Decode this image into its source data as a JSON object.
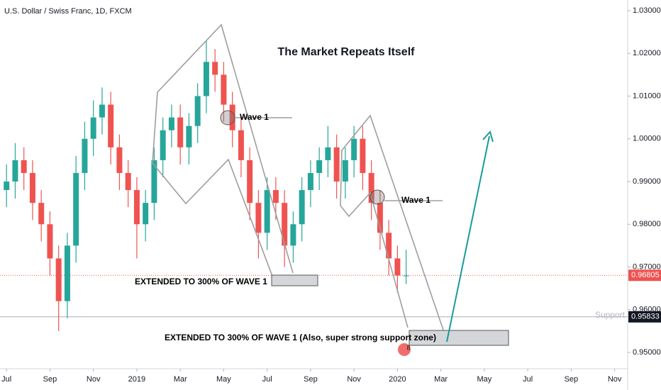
{
  "chart_data": {
    "type": "candlestick",
    "title": "U.S. Dollar / Swiss Franc, 1D, FXCM",
    "annotations": {
      "headline": "The Market Repeats Itself",
      "wave_left": "Wave 1",
      "wave_right": "Wave 1",
      "extended_left": "EXTENDED TO 300% OF WAVE 1",
      "extended_right": "EXTENDED TO 300% OF WAVE 1 (Also, super strong support zone)",
      "badge": "8"
    },
    "up_color": "#26a69a",
    "down_color": "#ef5350",
    "x": [
      0,
      0.4,
      0.8,
      1.2,
      1.6,
      2.0,
      2.4,
      2.8,
      3.2,
      3.6,
      4.0,
      4.4,
      4.8,
      5.2,
      5.6,
      6.0,
      6.4,
      6.8,
      7.2,
      7.6,
      8.0,
      8.4,
      8.8,
      9.2,
      9.6,
      10.0,
      10.4,
      10.8,
      11.2,
      11.6,
      12.0,
      12.4,
      12.8,
      13.2,
      13.6,
      14.0,
      14.4,
      14.8,
      15.2,
      15.6,
      16.0,
      16.4,
      16.8,
      17.2,
      17.6,
      18.0,
      18.4
    ],
    "open": [
      0.988,
      0.99,
      0.995,
      0.992,
      0.985,
      0.98,
      0.972,
      0.962,
      0.975,
      0.992,
      1.0,
      1.005,
      1.008,
      0.998,
      0.992,
      0.988,
      0.98,
      0.985,
      0.995,
      1.002,
      1.005,
      0.998,
      1.003,
      1.01,
      1.018,
      1.015,
      1.008,
      1.002,
      0.995,
      0.985,
      0.978,
      0.988,
      0.985,
      0.975,
      0.98,
      0.988,
      0.992,
      0.995,
      0.998,
      0.99,
      0.995,
      1.0,
      0.992,
      0.985,
      0.978,
      0.972,
      0.968
    ],
    "high": [
      0.994,
      0.999,
      0.998,
      0.995,
      0.988,
      0.983,
      0.975,
      0.978,
      0.996,
      1.004,
      1.009,
      1.012,
      1.011,
      1.001,
      0.995,
      0.991,
      0.988,
      0.998,
      1.005,
      1.008,
      1.008,
      1.006,
      1.013,
      1.023,
      1.021,
      1.018,
      1.011,
      1.005,
      0.998,
      0.988,
      0.991,
      0.991,
      0.988,
      0.983,
      0.991,
      0.995,
      0.998,
      1.003,
      1.001,
      0.998,
      1.003,
      1.003,
      0.995,
      0.988,
      0.981,
      0.975,
      0.974
    ],
    "low": [
      0.984,
      0.986,
      0.988,
      0.981,
      0.976,
      0.968,
      0.955,
      0.958,
      0.971,
      0.988,
      0.996,
      1.001,
      0.994,
      0.988,
      0.984,
      0.972,
      0.976,
      0.981,
      0.991,
      0.998,
      0.994,
      0.994,
      0.999,
      1.006,
      1.011,
      1.004,
      0.998,
      0.991,
      0.981,
      0.972,
      0.974,
      0.981,
      0.97,
      0.971,
      0.976,
      0.984,
      0.988,
      0.991,
      0.986,
      0.986,
      0.991,
      0.988,
      0.981,
      0.974,
      0.968,
      0.964,
      0.966
    ],
    "close": [
      0.99,
      0.995,
      0.992,
      0.985,
      0.98,
      0.972,
      0.962,
      0.975,
      0.992,
      1.0,
      1.005,
      1.008,
      0.998,
      0.992,
      0.988,
      0.98,
      0.985,
      0.995,
      1.002,
      1.005,
      0.998,
      1.003,
      1.01,
      1.018,
      1.015,
      1.008,
      1.002,
      0.995,
      0.985,
      0.978,
      0.988,
      0.985,
      0.975,
      0.98,
      0.988,
      0.992,
      0.995,
      0.998,
      0.99,
      0.995,
      1.0,
      0.992,
      0.985,
      0.978,
      0.972,
      0.968,
      0.968
    ],
    "xlim": [
      -0.3,
      28.6
    ],
    "xticks": [
      {
        "value": 0,
        "label": "Jul"
      },
      {
        "value": 2,
        "label": "Sep"
      },
      {
        "value": 4,
        "label": "Nov"
      },
      {
        "value": 6,
        "label": "2019"
      },
      {
        "value": 8,
        "label": "Mar"
      },
      {
        "value": 10,
        "label": "May"
      },
      {
        "value": 12,
        "label": "Jul"
      },
      {
        "value": 14,
        "label": "Sep"
      },
      {
        "value": 16,
        "label": "Nov"
      },
      {
        "value": 18,
        "label": "2020"
      },
      {
        "value": 20,
        "label": "Mar"
      },
      {
        "value": 22,
        "label": "May"
      },
      {
        "value": 24,
        "label": "Jul"
      },
      {
        "value": 26,
        "label": "Sep"
      },
      {
        "value": 28,
        "label": "Nov"
      }
    ],
    "ylim": [
      0.9465,
      1.0325
    ],
    "yticks": [
      {
        "value": 0.95,
        "label": "0.95000"
      },
      {
        "value": 0.96,
        "label": "0.96000"
      },
      {
        "value": 0.97,
        "label": "0.97000"
      },
      {
        "value": 0.98,
        "label": "0.98000"
      },
      {
        "value": 0.99,
        "label": "0.99000"
      },
      {
        "value": 1.0,
        "label": "1.00000"
      },
      {
        "value": 1.01,
        "label": "1.01000"
      },
      {
        "value": 1.02,
        "label": "1.02000"
      },
      {
        "value": 1.03,
        "label": "1.03000"
      }
    ],
    "price_lines": [
      {
        "value": 0.96805,
        "color": "#ef5350"
      },
      {
        "name": "Support",
        "value": 0.95833,
        "color": "#131722"
      }
    ]
  }
}
